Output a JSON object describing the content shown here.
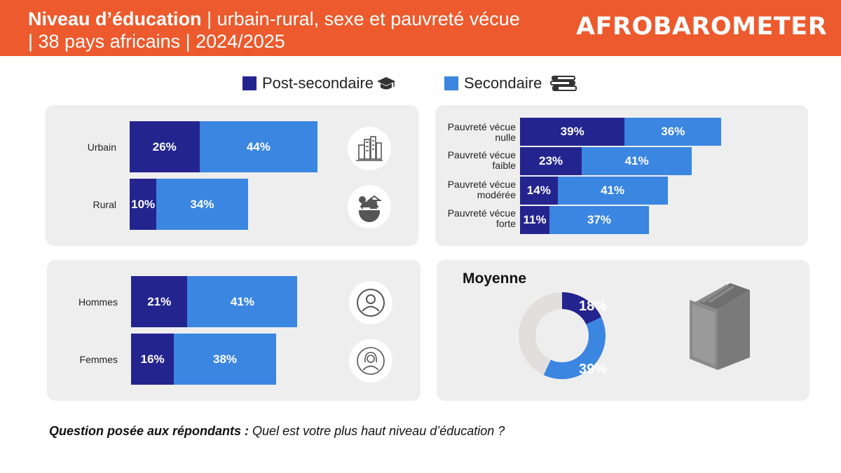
{
  "header": {
    "title_bold": "Niveau d’éducation",
    "title_rest": " | urbain-rural, sexe et pauvreté vécue",
    "title_line2": "| 38 pays africains | 2024/2025",
    "logo": "AFROBAROMETER"
  },
  "colors": {
    "post_secondaire": "#24248f",
    "secondaire": "#3a86e0",
    "remainder": "#e2dede",
    "header": "#ec5a2d",
    "panel": "#efeeee"
  },
  "legend": {
    "post": "Post-secondaire",
    "sec": "Secondaire"
  },
  "chart_data": [
    {
      "type": "bar",
      "stacked": true,
      "orientation": "horizontal",
      "categories": [
        "Urbain",
        "Rural"
      ],
      "series": [
        {
          "name": "Post-secondaire",
          "values": [
            26,
            10
          ],
          "labels": [
            "26%",
            "10%"
          ]
        },
        {
          "name": "Secondaire",
          "values": [
            44,
            34
          ],
          "labels": [
            "44%",
            "34%"
          ]
        }
      ]
    },
    {
      "type": "bar",
      "stacked": true,
      "orientation": "horizontal",
      "categories": [
        "Pauvreté vécue nulle",
        "Pauvreté vécue faible",
        "Pauvreté vécue modérée",
        "Pauvreté vécue forte"
      ],
      "category_lines": [
        [
          "Pauvreté vécue",
          "nulle"
        ],
        [
          "Pauvreté vécue",
          "faible"
        ],
        [
          "Pauvreté vécue",
          "modérée"
        ],
        [
          "Pauvreté vécue",
          "forte"
        ]
      ],
      "series": [
        {
          "name": "Post-secondaire",
          "values": [
            39,
            23,
            14,
            11
          ],
          "labels": [
            "39%",
            "23%",
            "14%",
            "11%"
          ]
        },
        {
          "name": "Secondaire",
          "values": [
            36,
            41,
            41,
            37
          ],
          "labels": [
            "36%",
            "41%",
            "41%",
            "37%"
          ]
        }
      ]
    },
    {
      "type": "bar",
      "stacked": true,
      "orientation": "horizontal",
      "categories": [
        "Hommes",
        "Femmes"
      ],
      "series": [
        {
          "name": "Post-secondaire",
          "values": [
            21,
            16
          ],
          "labels": [
            "21%",
            "16%"
          ]
        },
        {
          "name": "Secondaire",
          "values": [
            41,
            38
          ],
          "labels": [
            "41%",
            "38%"
          ]
        }
      ]
    },
    {
      "type": "pie",
      "donut": true,
      "title": "Moyenne",
      "categories": [
        "Post-secondaire",
        "Secondaire"
      ],
      "values": [
        18,
        39
      ],
      "labels": [
        "18%",
        "39%"
      ]
    }
  ],
  "question": {
    "label": "Question posée aux répondants :",
    "text": " Quel est votre plus haut niveau d’éducation ?"
  }
}
